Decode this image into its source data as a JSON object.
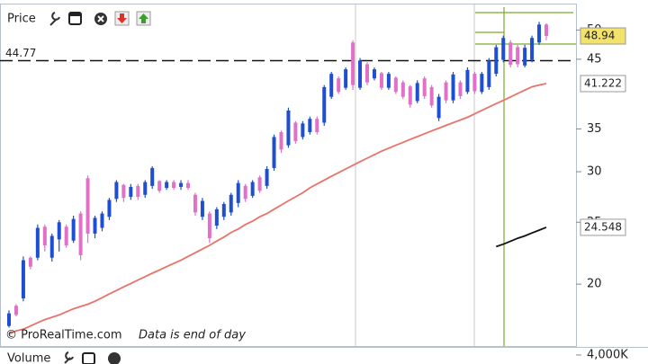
{
  "chart_data": {
    "type": "ohlc",
    "title": "Price",
    "yscale": "log",
    "ylim": [
      16,
      55
    ],
    "yticks": [
      20,
      25,
      30,
      35,
      45,
      50
    ],
    "up_color": "#1f4fd1",
    "down_color": "#e070c8",
    "high": [
      18.2,
      18.6,
      22.1,
      22.1,
      24.8,
      24.8,
      24.0,
      25.2,
      24.8,
      25.6,
      26.0,
      29.6,
      25.6,
      26.0,
      27.3,
      29.1,
      28.7,
      28.7,
      28.7,
      29.1,
      30.6,
      29.1,
      29.1,
      29.1,
      29.1,
      29.1,
      27.8,
      27.3,
      26.0,
      26.4,
      26.9,
      27.8,
      29.1,
      28.7,
      29.1,
      29.6,
      30.6,
      34.3,
      34.8,
      37.8,
      36.0,
      36.0,
      36.6,
      36.6,
      41.0,
      43.0,
      42.3,
      43.7,
      48.2,
      45.2,
      44.5,
      43.7,
      43.0,
      43.0,
      42.3,
      41.7,
      41.0,
      41.7,
      42.3,
      41.0,
      39.7,
      41.7,
      43.0,
      41.7,
      43.7,
      43.0,
      43.0,
      45.2,
      47.4,
      49.0,
      48.2,
      47.4,
      47.4,
      49.0,
      51.5,
      51.2
    ],
    "low": [
      17.1,
      17.8,
      18.8,
      21.1,
      21.8,
      22.5,
      21.7,
      22.5,
      22.8,
      23.2,
      21.8,
      23.2,
      23.6,
      24.2,
      25.2,
      26.9,
      26.9,
      27.1,
      27.1,
      27.3,
      28.2,
      27.8,
      28.1,
      28.1,
      28.1,
      28.1,
      25.6,
      25.2,
      23.2,
      24.4,
      25.2,
      25.6,
      26.4,
      26.9,
      27.3,
      27.8,
      28.2,
      30.1,
      32.1,
      32.7,
      33.2,
      33.7,
      34.3,
      34.3,
      35.4,
      39.0,
      39.7,
      40.3,
      40.3,
      40.3,
      41.0,
      41.7,
      40.3,
      40.3,
      39.7,
      39.0,
      37.8,
      38.4,
      39.0,
      37.8,
      36.0,
      38.4,
      38.4,
      39.0,
      39.7,
      39.7,
      39.7,
      40.3,
      42.3,
      44.5,
      43.7,
      43.7,
      43.7,
      44.5,
      47.4,
      48.2
    ],
    "open": [
      17.2,
      18.5,
      19.0,
      22.0,
      22.0,
      24.6,
      22.0,
      23.5,
      24.6,
      23.4,
      25.8,
      29.3,
      24.0,
      24.5,
      25.5,
      27.2,
      28.6,
      27.4,
      28.5,
      27.6,
      28.5,
      29.0,
      28.3,
      28.9,
      28.4,
      28.8,
      27.6,
      25.5,
      25.8,
      24.7,
      25.5,
      25.9,
      26.8,
      28.5,
      27.5,
      29.4,
      28.5,
      30.4,
      34.6,
      33.0,
      35.8,
      34.0,
      34.6,
      36.3,
      35.8,
      39.3,
      42.0,
      40.6,
      47.8,
      40.6,
      44.2,
      42.0,
      42.8,
      40.6,
      42.1,
      41.4,
      40.8,
      38.7,
      42.0,
      40.7,
      36.4,
      41.4,
      38.8,
      41.4,
      40.0,
      42.7,
      40.0,
      40.7,
      42.7,
      44.9,
      47.8,
      47.0,
      44.0,
      44.9,
      47.8,
      51.0
    ],
    "close": [
      18.0,
      17.9,
      21.8,
      21.3,
      24.5,
      23.0,
      23.8,
      25.0,
      23.0,
      25.3,
      22.2,
      24.0,
      25.4,
      25.8,
      27.1,
      28.9,
      27.3,
      28.4,
      27.4,
      28.9,
      30.4,
      28.0,
      28.9,
      28.3,
      28.8,
      28.3,
      25.9,
      27.0,
      23.6,
      26.2,
      26.7,
      27.6,
      28.8,
      27.2,
      28.9,
      28.0,
      30.3,
      34.0,
      32.5,
      37.4,
      33.5,
      35.7,
      36.3,
      34.6,
      40.7,
      42.7,
      40.0,
      43.4,
      41.0,
      44.8,
      41.4,
      43.4,
      40.6,
      42.7,
      40.0,
      39.3,
      38.2,
      41.3,
      39.4,
      38.1,
      39.3,
      38.8,
      42.6,
      39.4,
      43.3,
      40.1,
      42.7,
      44.8,
      47.0,
      48.6,
      44.1,
      44.2,
      46.9,
      48.6,
      51.0,
      48.94
    ],
    "moving_average": {
      "color": "#e8736a",
      "values": [
        16.7,
        16.9,
        17.0,
        17.2,
        17.4,
        17.6,
        17.75,
        17.9,
        18.1,
        18.3,
        18.45,
        18.6,
        18.8,
        19.05,
        19.3,
        19.55,
        19.8,
        20.05,
        20.3,
        20.55,
        20.8,
        21.05,
        21.3,
        21.55,
        21.8,
        22.1,
        22.4,
        22.7,
        23.0,
        23.36,
        23.7,
        24.1,
        24.4,
        24.8,
        25.1,
        25.5,
        25.8,
        26.2,
        26.6,
        27.0,
        27.4,
        27.8,
        28.3,
        28.7,
        29.1,
        29.5,
        29.9,
        30.3,
        30.7,
        31.1,
        31.5,
        31.9,
        32.3,
        32.65,
        33.0,
        33.35,
        33.7,
        34.05,
        34.4,
        34.75,
        35.1,
        35.45,
        35.8,
        36.15,
        36.5,
        36.96,
        37.42,
        37.88,
        38.34,
        38.8,
        39.28,
        39.77,
        40.25,
        40.74,
        41.0,
        41.222
      ]
    },
    "indicator": {
      "color": "#111111",
      "values": [
        null,
        null,
        null,
        null,
        null,
        null,
        null,
        null,
        null,
        null,
        null,
        null,
        null,
        null,
        null,
        null,
        null,
        null,
        null,
        null,
        null,
        null,
        null,
        null,
        null,
        null,
        null,
        null,
        null,
        null,
        null,
        null,
        null,
        null,
        null,
        null,
        null,
        null,
        null,
        null,
        null,
        null,
        null,
        null,
        null,
        null,
        null,
        null,
        null,
        null,
        null,
        null,
        null,
        null,
        null,
        null,
        null,
        null,
        null,
        null,
        null,
        null,
        null,
        null,
        null,
        null,
        null,
        null,
        22.9,
        23.1,
        23.35,
        23.6,
        23.8,
        24.05,
        24.3,
        24.548
      ]
    },
    "hline": 44.77,
    "watermark": "© ProRealTime.com",
    "note": "Data is end of day",
    "volume": {
      "title": "Volume",
      "yticks": [
        {
          "value": 4000000,
          "label": "4,000K"
        }
      ]
    }
  }
}
